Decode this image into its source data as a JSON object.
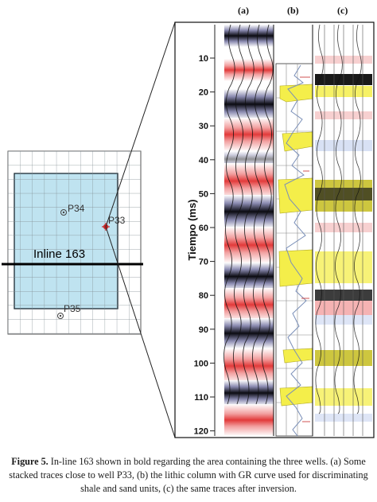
{
  "figure": {
    "panels": [
      "(a)",
      "(b)",
      "(c)"
    ],
    "y_axis": {
      "label": "Tiempo (ms)",
      "ticks": [
        "10",
        "20",
        "30",
        "40",
        "50",
        "60",
        "70",
        "80",
        "90",
        "100",
        "110",
        "120"
      ]
    },
    "map": {
      "inline_label": "Inline 163",
      "wells": [
        {
          "name": "P34"
        },
        {
          "name": "P33"
        },
        {
          "name": "P35"
        }
      ]
    },
    "colors": {
      "map_fill": "#bfe3f0",
      "inline": "#000000",
      "red_lobe": "#e23a3a",
      "black_lobe": "#0b0b12",
      "sand": "#f4ee4a",
      "sand_inverted": "#c8c02a",
      "gr_curve": "#7a8fb8"
    }
  },
  "caption": {
    "label": "Figure 5.",
    "text": " In-line 163 shown in bold regarding the area containing the three wells. (a) Some stacked traces close to well P33, (b) the lithic column with GR curve used for discriminating shale and sand units, (c) the same traces after inversion."
  }
}
